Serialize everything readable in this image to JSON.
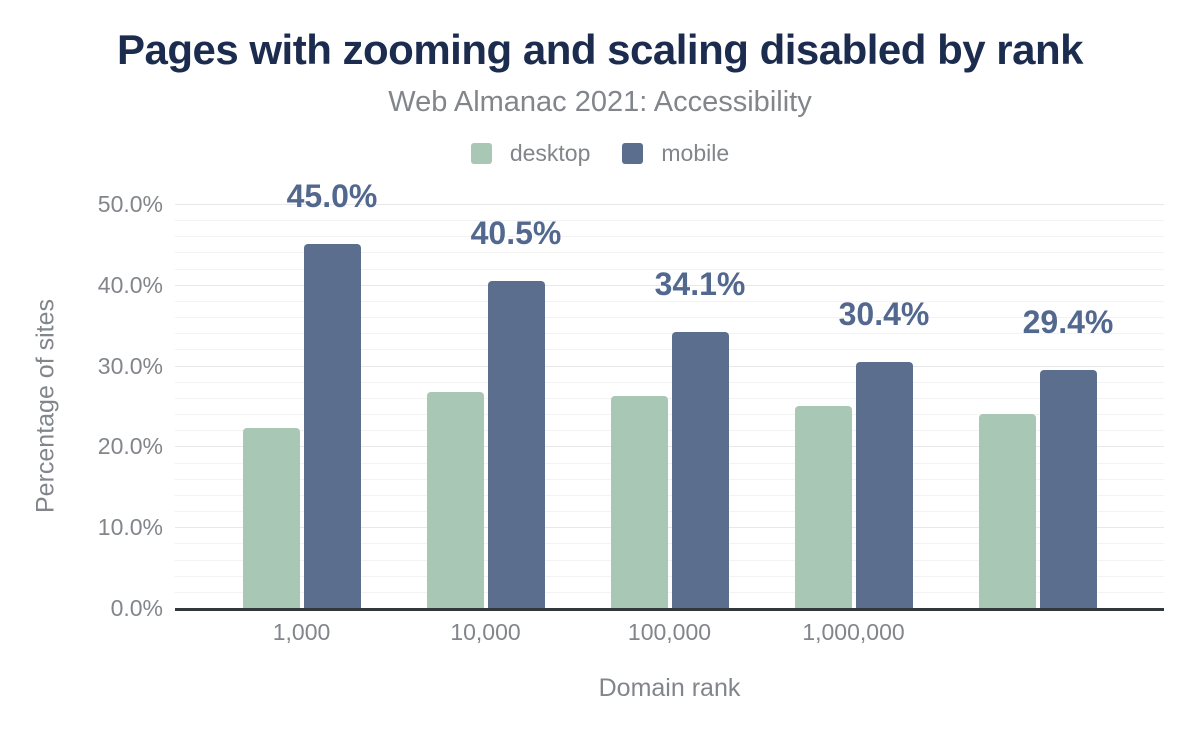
{
  "title": "Pages with zooming and scaling disabled by rank",
  "subtitle": "Web Almanac 2021: Accessibility",
  "colors": {
    "title": "#1c2c4f",
    "text_muted": "#82868b",
    "axis_line": "#32373c",
    "grid_minor": "#f3f3f3",
    "grid_major": "#e8e8e8",
    "background": "#ffffff",
    "annotation": "#53688e"
  },
  "chart_data": {
    "type": "bar",
    "title": "Pages with zooming and scaling disabled by rank",
    "subtitle": "Web Almanac 2021: Accessibility",
    "categories": [
      "1,000",
      "10,000",
      "100,000",
      "1,000,000",
      ""
    ],
    "series": [
      {
        "name": "desktop",
        "color": "#a8c7b5",
        "values": [
          22.3,
          26.7,
          26.2,
          25.0,
          24.0
        ]
      },
      {
        "name": "mobile",
        "color": "#5c6e8d",
        "values": [
          45.0,
          40.5,
          34.1,
          30.4,
          29.4
        ]
      }
    ],
    "annotations": {
      "series": "mobile",
      "labels": [
        "45.0%",
        "40.5%",
        "34.1%",
        "30.4%",
        "29.4%"
      ]
    },
    "xlabel": "Domain rank",
    "ylabel": "Percentage of sites",
    "ylim": [
      0,
      50
    ],
    "y_ticks": {
      "values": [
        0,
        10,
        20,
        30,
        40,
        50
      ],
      "labels": [
        "0.0%",
        "10.0%",
        "20.0%",
        "30.0%",
        "40.0%",
        "50.0%"
      ]
    },
    "grid": {
      "minor_step": 2,
      "major_step": 10,
      "enabled": true
    },
    "legend_position": "top"
  }
}
